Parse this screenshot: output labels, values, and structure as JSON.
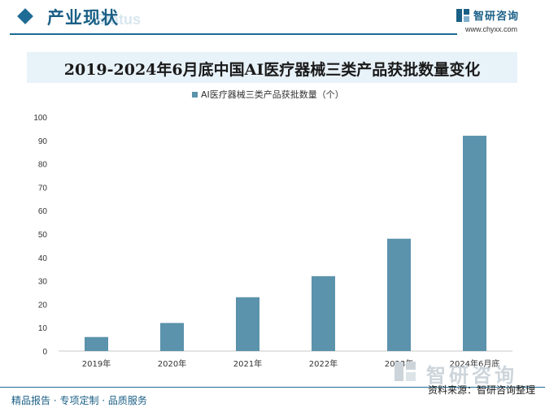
{
  "header": {
    "title": "产业现状",
    "ghost_text": "Status",
    "brand_name": "智研咨询",
    "brand_url": "www.chyxx.com"
  },
  "chart_title": "2019-2024年6月底中国AI医疗器械三类产品获批数量变化",
  "chart_data": {
    "type": "bar",
    "title": "2019-2024年6月底中国AI医疗器械三类产品获批数量变化",
    "categories": [
      "2019年",
      "2020年",
      "2021年",
      "2022年",
      "2023年",
      "2024年6月底"
    ],
    "series": [
      {
        "name": "AI医疗器械三类产品获批数量（个）",
        "values": [
          6,
          12,
          23,
          32,
          48,
          92
        ],
        "color": "#5b92ac"
      }
    ],
    "ylim": [
      0,
      100
    ],
    "yticks": [
      0,
      10,
      20,
      30,
      40,
      50,
      60,
      70,
      80,
      90,
      100
    ],
    "legend_position": "top-center",
    "grid": false
  },
  "footer": {
    "left_text": "精品报告 · 专项定制 · 品质服务",
    "source_text": "资料来源：智研咨询整理",
    "watermark_text": "智研咨询"
  }
}
